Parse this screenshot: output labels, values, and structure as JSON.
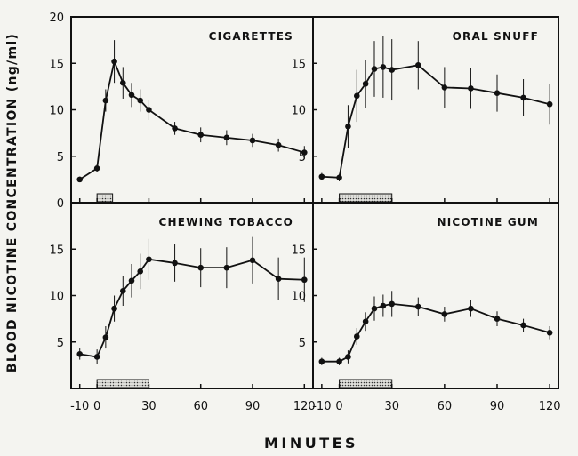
{
  "chart_data": {
    "type": "line",
    "ylabel": "BLOOD NICOTINE CONCENTRATION (ng/ml)",
    "xlabel": "MINUTES",
    "xlim": [
      -15,
      125
    ],
    "ylim": [
      0,
      20
    ],
    "x_ticks": [
      -10,
      0,
      30,
      60,
      90,
      120
    ],
    "x_tick_labels": [
      "-10",
      "0",
      "30",
      "60",
      "90",
      "120"
    ],
    "y_tick_labels_top": [
      "0",
      "5",
      "10",
      "15",
      "20"
    ],
    "y_tick_labels_other": [
      "5",
      "10",
      "15"
    ],
    "grid": false,
    "panels": [
      {
        "id": "cigarettes",
        "title": "CIGARETTES",
        "position": "top-left",
        "exposure": [
          0,
          9
        ],
        "x": [
          -10,
          0,
          5,
          10,
          15,
          20,
          25,
          30,
          45,
          60,
          75,
          90,
          105,
          120
        ],
        "y": [
          2.5,
          3.7,
          11.0,
          15.2,
          12.9,
          11.6,
          11.0,
          10.0,
          8.0,
          7.3,
          7.0,
          6.7,
          6.2,
          5.4
        ],
        "err": [
          0.3,
          0.4,
          1.2,
          2.3,
          1.7,
          1.3,
          1.2,
          1.1,
          0.7,
          0.8,
          0.8,
          0.7,
          0.7,
          0.7
        ]
      },
      {
        "id": "oral-snuff",
        "title": "ORAL SNUFF",
        "position": "top-right",
        "exposure": [
          0,
          30
        ],
        "x": [
          -10,
          0,
          5,
          10,
          15,
          20,
          25,
          30,
          45,
          60,
          75,
          90,
          105,
          120
        ],
        "y": [
          2.8,
          2.7,
          8.2,
          11.5,
          12.8,
          14.4,
          14.6,
          14.3,
          14.8,
          12.4,
          12.3,
          11.8,
          11.3,
          10.6
        ],
        "err": [
          0.4,
          0.4,
          2.3,
          2.8,
          2.6,
          3.0,
          3.3,
          3.3,
          2.6,
          2.2,
          2.2,
          2.0,
          2.0,
          2.2
        ]
      },
      {
        "id": "chewing-tobacco",
        "title": "CHEWING TOBACCO",
        "position": "bottom-left",
        "exposure": [
          0,
          30
        ],
        "x": [
          -10,
          0,
          5,
          10,
          15,
          20,
          25,
          30,
          45,
          60,
          75,
          90,
          105,
          120
        ],
        "y": [
          3.7,
          3.4,
          5.5,
          8.6,
          10.5,
          11.6,
          12.6,
          13.9,
          13.5,
          13.0,
          13.0,
          13.8,
          11.8,
          11.7
        ],
        "err": [
          0.6,
          0.8,
          1.2,
          1.4,
          1.6,
          1.8,
          1.9,
          2.2,
          2.0,
          2.1,
          2.2,
          2.5,
          2.3,
          2.4
        ]
      },
      {
        "id": "nicotine-gum",
        "title": "NICOTINE GUM",
        "position": "bottom-right",
        "exposure": [
          0,
          30
        ],
        "x": [
          -10,
          0,
          5,
          10,
          15,
          20,
          25,
          30,
          45,
          60,
          75,
          90,
          105,
          120
        ],
        "y": [
          2.9,
          2.9,
          3.4,
          5.6,
          7.2,
          8.6,
          8.9,
          9.1,
          8.8,
          8.0,
          8.6,
          7.5,
          6.8,
          6.0
        ],
        "err": [
          0.4,
          0.4,
          0.7,
          0.9,
          1.0,
          1.3,
          1.2,
          1.4,
          1.0,
          0.8,
          0.9,
          0.8,
          0.7,
          0.7
        ]
      }
    ]
  }
}
